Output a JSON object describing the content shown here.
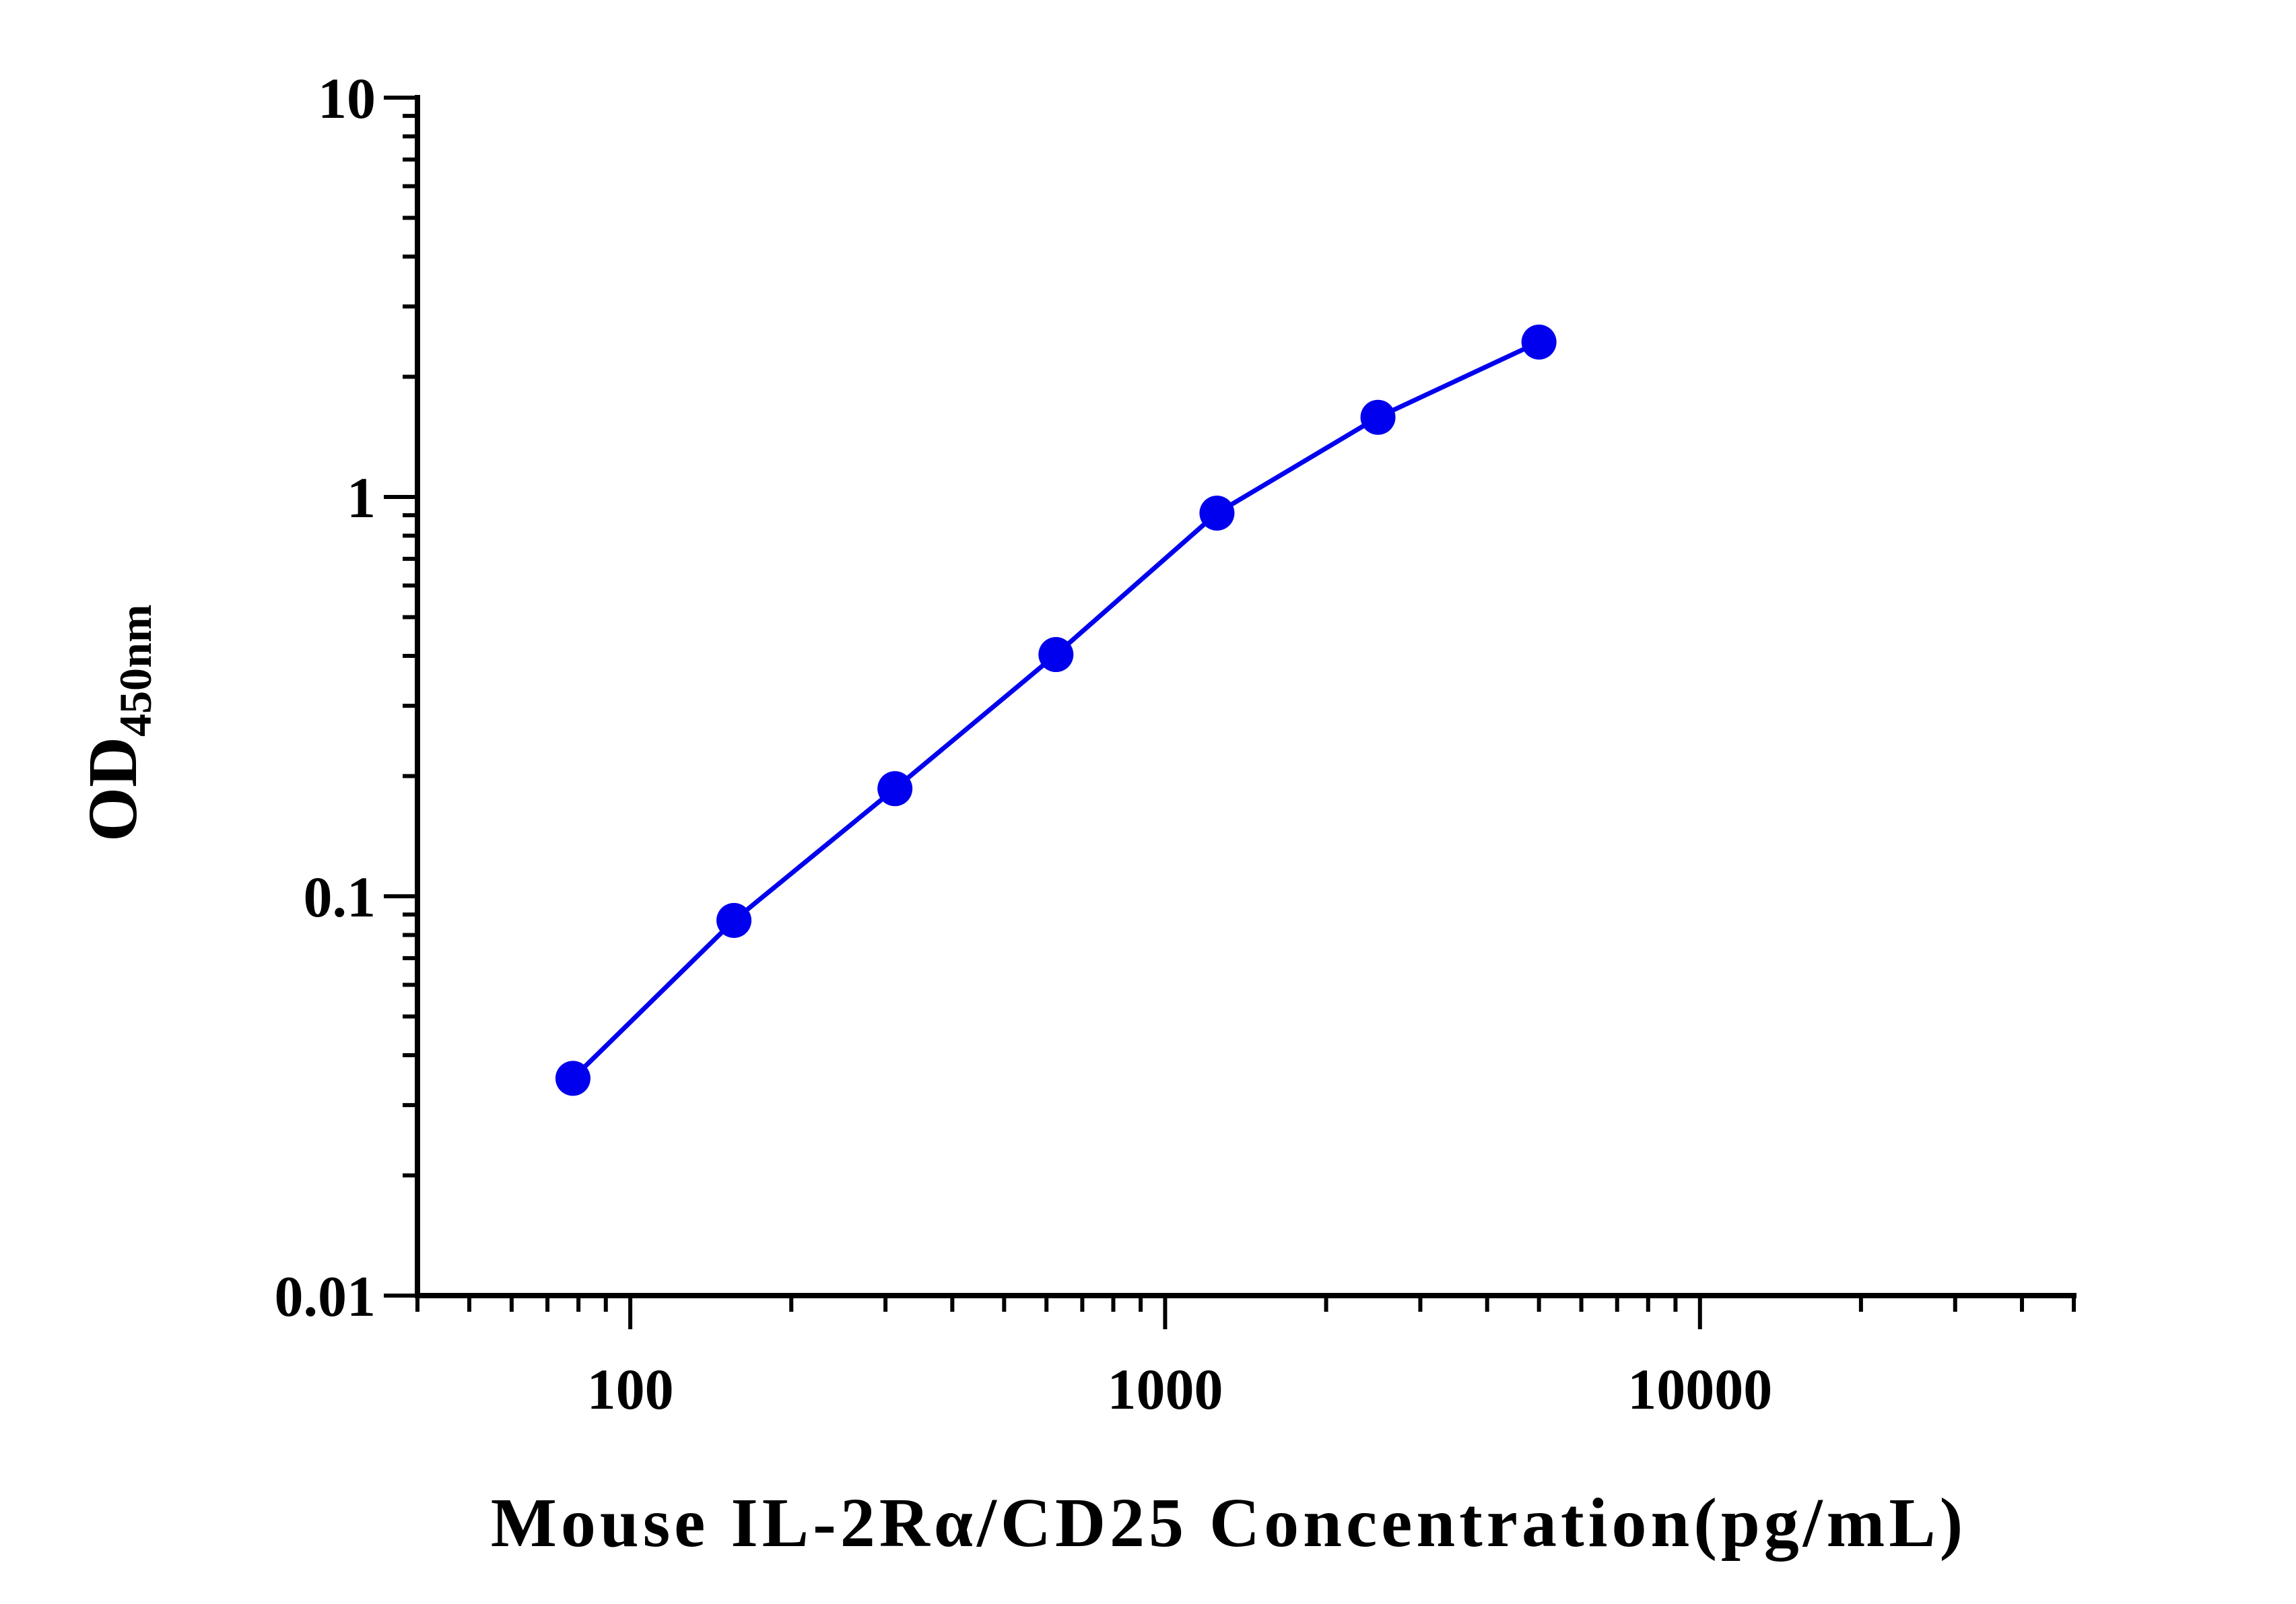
{
  "chart_data": {
    "type": "line",
    "title": "",
    "xlabel": "Mouse IL-2Rα/CD25 Concentration(pg/mL)",
    "ylabel_main": "OD",
    "ylabel_sub": "450nm",
    "x_scale": "log",
    "y_scale": "log",
    "xlim": [
      40,
      50000
    ],
    "ylim": [
      0.01,
      10
    ],
    "x_ticks": [
      {
        "value": 100,
        "label": "100"
      },
      {
        "value": 1000,
        "label": "1000"
      },
      {
        "value": 10000,
        "label": "10000"
      }
    ],
    "y_ticks": [
      {
        "value": 0.01,
        "label": "0.01"
      },
      {
        "value": 0.1,
        "label": "0.1"
      },
      {
        "value": 1,
        "label": "1"
      },
      {
        "value": 10,
        "label": "10"
      }
    ],
    "grid": false,
    "legend": false,
    "series_color": "#0000ee",
    "series": [
      {
        "x": [
          78.125,
          156.25,
          312.5,
          625,
          1250,
          2500,
          5000
        ],
        "y": [
          0.035,
          0.087,
          0.186,
          0.403,
          0.911,
          1.583,
          2.443
        ]
      }
    ]
  }
}
